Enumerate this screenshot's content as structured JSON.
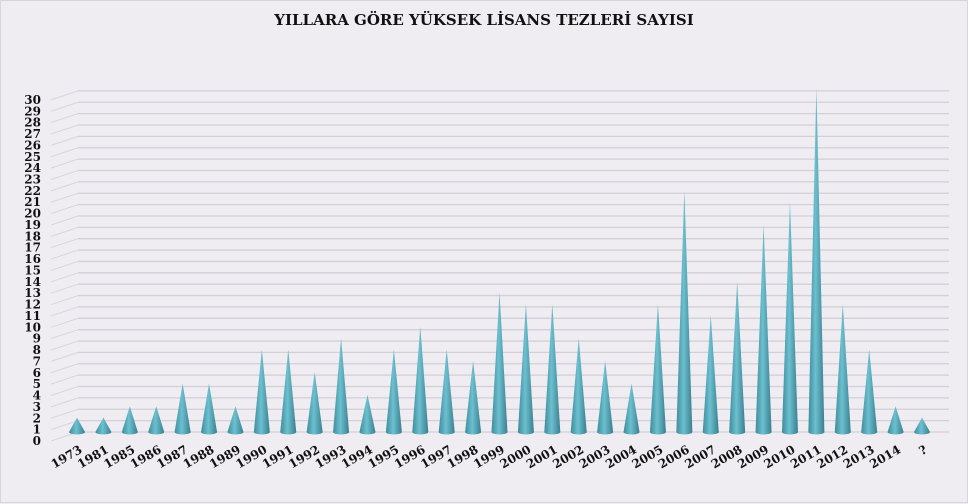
{
  "chart_data": {
    "type": "bar",
    "style": "3d-cone",
    "title": "YILLARA GÖRE YÜKSEK LİSANS TEZLERİ SAYISI",
    "xlabel": "",
    "ylabel": "",
    "ylim": [
      0,
      30
    ],
    "yticks": [
      0,
      1,
      2,
      3,
      4,
      5,
      6,
      7,
      8,
      9,
      10,
      11,
      12,
      13,
      14,
      15,
      16,
      17,
      18,
      19,
      20,
      21,
      22,
      23,
      24,
      25,
      26,
      27,
      28,
      29,
      30
    ],
    "grid": true,
    "legend": "none",
    "color": "#4a9aab",
    "categories": [
      "1973",
      "1981",
      "1985",
      "1986",
      "1987",
      "1988",
      "1989",
      "1990",
      "1991",
      "1992",
      "1993",
      "1994",
      "1995",
      "1996",
      "1997",
      "1998",
      "1999",
      "2000",
      "2001",
      "2002",
      "2003",
      "2004",
      "2005",
      "2006",
      "2007",
      "2008",
      "2009",
      "2010",
      "2011",
      "2012",
      "2013",
      "2014",
      "?"
    ],
    "values": [
      1,
      1,
      2,
      2,
      4,
      4,
      2,
      7,
      7,
      5,
      8,
      3,
      7,
      9,
      7,
      6,
      12,
      11,
      11,
      8,
      6,
      4,
      11,
      21,
      10,
      13,
      18,
      20,
      30,
      11,
      7,
      2,
      1
    ]
  }
}
